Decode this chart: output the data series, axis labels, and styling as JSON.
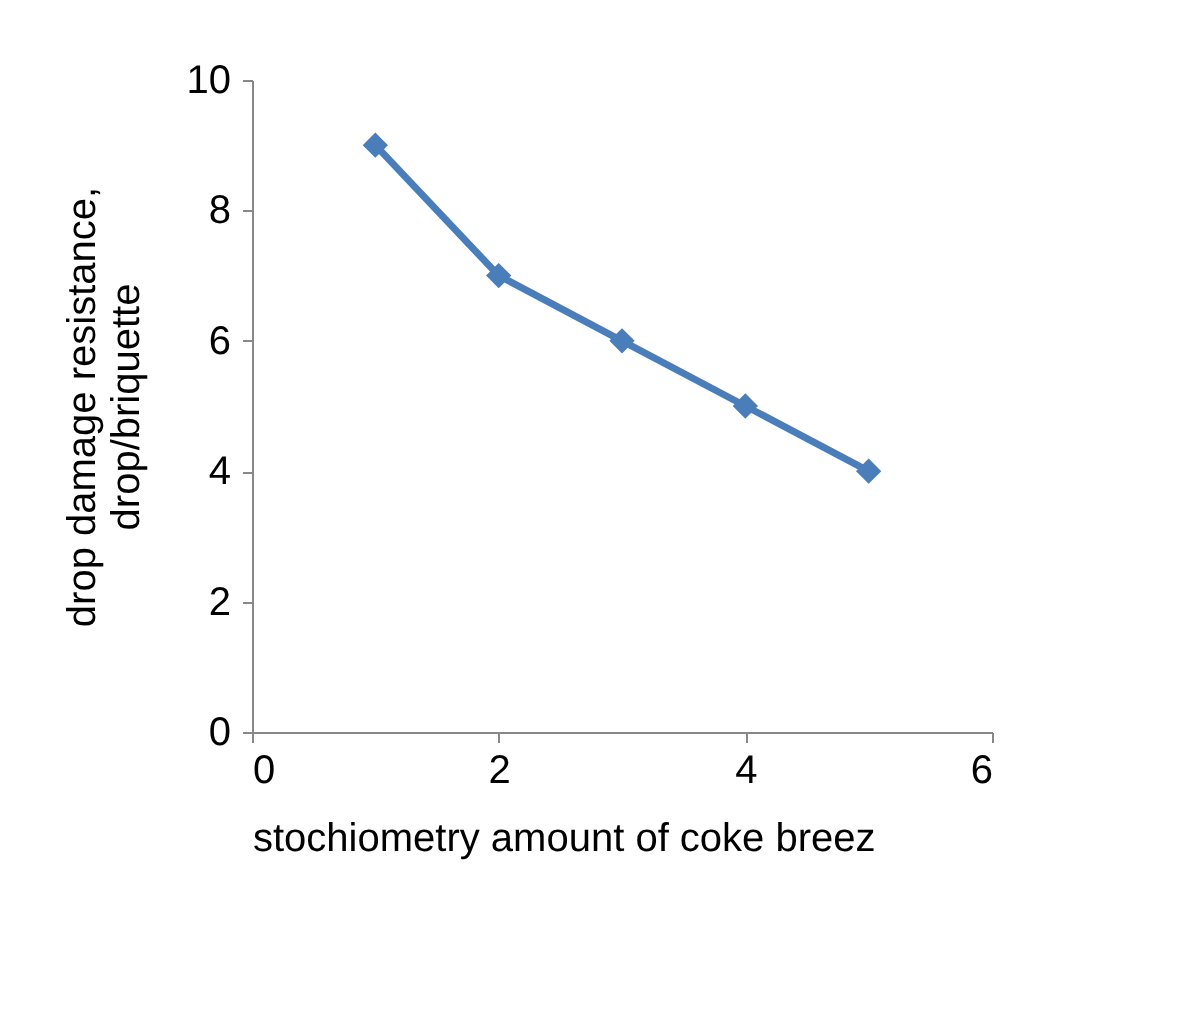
{
  "chart_data": {
    "type": "line",
    "xlabel": "stochiometry amount of coke breez",
    "ylabel": "drop damage resistance,\ndrop/briquette",
    "x": [
      1,
      2,
      3,
      4,
      5
    ],
    "series": [
      {
        "color": "#4a7ebb",
        "values": [
          9,
          7,
          6,
          5,
          4
        ]
      }
    ],
    "xlim": [
      0,
      6
    ],
    "xticks": [
      0,
      2,
      4,
      6
    ],
    "ylim": [
      0,
      10
    ],
    "yticks": [
      0,
      2,
      4,
      6,
      8,
      10
    ],
    "grid": false,
    "legend": false,
    "marker": "diamond",
    "line_style": "solid"
  }
}
